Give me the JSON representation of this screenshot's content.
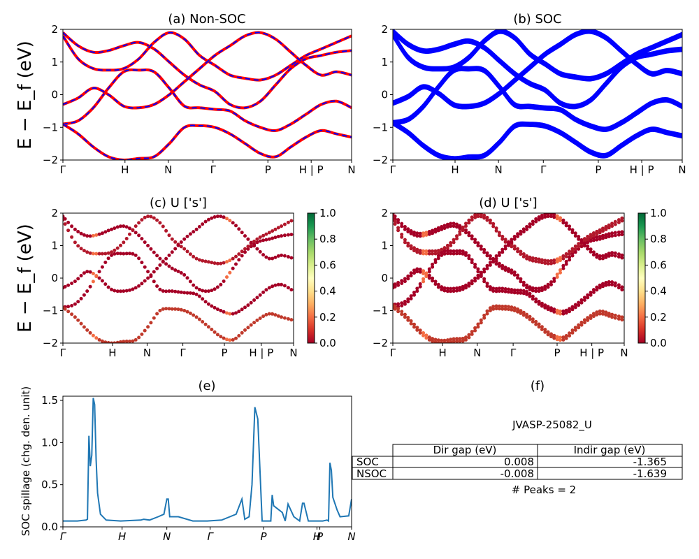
{
  "colors": {
    "nonsoc_red": "#ff0000",
    "nonsoc_blue": "#0000ff",
    "soc_blue": "#0000ff",
    "spillage_line": "#1f77b4",
    "colormap": "RdYlGn"
  },
  "shared": {
    "ylabel": "E − E_f (eV)",
    "ylim": [
      -2,
      2
    ],
    "yticks": [
      "2",
      "1",
      "0",
      "−1",
      "−2"
    ]
  },
  "chart_data": [
    {
      "id": "a",
      "type": "line",
      "title": "(a) Non-SOC",
      "ylim": [
        -2,
        2
      ],
      "kpath": [
        "Γ",
        "H",
        "N",
        "Γ",
        "P",
        "H | P",
        "N"
      ],
      "series": [
        {
          "y": [
            1.9,
            1.5,
            1.3,
            1.35,
            1.5,
            1.6,
            1.4,
            1.0,
            0.6,
            0.3,
            0.1,
            -0.3,
            -0.4,
            -0.2,
            0.3,
            0.8,
            1.1,
            1.2,
            1.3,
            1.35
          ]
        },
        {
          "y": [
            1.8,
            1.1,
            0.8,
            0.75,
            0.8,
            1.1,
            1.6,
            1.9,
            1.7,
            1.2,
            0.9,
            0.6,
            0.5,
            0.45,
            0.6,
            0.9,
            1.2,
            1.4,
            1.6,
            1.8
          ]
        },
        {
          "y": [
            -0.9,
            -0.8,
            -0.4,
            0.2,
            0.7,
            0.75,
            0.7,
            0.2,
            -0.35,
            -0.4,
            -0.45,
            -0.5,
            -0.8,
            -1.0,
            -1.1,
            -0.9,
            -0.6,
            -0.3,
            -0.2,
            -0.4
          ]
        },
        {
          "y": [
            -0.9,
            -1.2,
            -1.6,
            -1.9,
            -2.0,
            -1.95,
            -1.9,
            -1.5,
            -1.0,
            -0.95,
            -1.0,
            -1.2,
            -1.5,
            -1.8,
            -1.9,
            -1.6,
            -1.3,
            -1.1,
            -1.2,
            -1.3
          ]
        },
        {
          "y": [
            -0.3,
            -0.1,
            0.2,
            0.0,
            -0.35,
            -0.4,
            -0.3,
            0.0,
            0.4,
            0.8,
            1.2,
            1.5,
            1.8,
            1.9,
            1.7,
            1.3,
            0.9,
            0.6,
            0.7,
            0.6
          ]
        }
      ]
    },
    {
      "id": "b",
      "type": "line",
      "title": "(b) SOC",
      "ylim": [
        -2,
        2
      ],
      "kpath": [
        "Γ",
        "H",
        "N",
        "Γ",
        "P",
        "H | P",
        "N"
      ],
      "series": [
        {
          "y": [
            1.9,
            1.5,
            1.3,
            1.35,
            1.5,
            1.6,
            1.4,
            1.0,
            0.6,
            0.3,
            0.1,
            -0.3,
            -0.4,
            -0.2,
            0.3,
            0.8,
            1.1,
            1.2,
            1.3,
            1.35
          ]
        },
        {
          "y": [
            1.8,
            1.1,
            0.8,
            0.75,
            0.8,
            1.1,
            1.6,
            1.9,
            1.7,
            1.2,
            0.9,
            0.6,
            0.5,
            0.45,
            0.6,
            0.9,
            1.2,
            1.4,
            1.6,
            1.8
          ]
        },
        {
          "y": [
            -0.9,
            -0.8,
            -0.4,
            0.2,
            0.7,
            0.75,
            0.7,
            0.2,
            -0.35,
            -0.4,
            -0.45,
            -0.5,
            -0.8,
            -1.0,
            -1.1,
            -0.9,
            -0.6,
            -0.3,
            -0.2,
            -0.4
          ]
        },
        {
          "y": [
            -0.9,
            -1.2,
            -1.6,
            -1.9,
            -2.0,
            -1.95,
            -1.9,
            -1.5,
            -1.0,
            -0.95,
            -1.0,
            -1.2,
            -1.5,
            -1.8,
            -1.9,
            -1.6,
            -1.3,
            -1.1,
            -1.2,
            -1.3
          ]
        },
        {
          "y": [
            -0.3,
            -0.1,
            0.2,
            0.0,
            -0.35,
            -0.4,
            -0.3,
            0.0,
            0.4,
            0.8,
            1.2,
            1.5,
            1.8,
            1.9,
            1.7,
            1.3,
            0.9,
            0.6,
            0.7,
            0.6
          ]
        }
      ]
    },
    {
      "id": "c",
      "type": "scatter",
      "title": "(c)  U ['s']",
      "ylim": [
        -2,
        2
      ],
      "kpath": [
        "Γ",
        "H",
        "N",
        "Γ",
        "P",
        "H | P",
        "N"
      ],
      "colorbar": {
        "min": 0.0,
        "max": 1.0,
        "ticks": [
          "1.0",
          "0.8",
          "0.6",
          "0.4",
          "0.2",
          "0.0"
        ]
      },
      "series": [
        {
          "y": [
            1.9,
            1.5,
            1.3,
            1.35,
            1.5,
            1.6,
            1.4,
            1.0,
            0.6,
            0.3,
            0.1,
            -0.3,
            -0.4,
            -0.2,
            0.3,
            0.8,
            1.1,
            1.2,
            1.3,
            1.35
          ]
        },
        {
          "y": [
            1.8,
            1.1,
            0.8,
            0.75,
            0.8,
            1.1,
            1.6,
            1.9,
            1.7,
            1.2,
            0.9,
            0.6,
            0.5,
            0.45,
            0.6,
            0.9,
            1.2,
            1.4,
            1.6,
            1.8
          ]
        },
        {
          "y": [
            -0.9,
            -0.8,
            -0.4,
            0.2,
            0.7,
            0.75,
            0.7,
            0.2,
            -0.35,
            -0.4,
            -0.45,
            -0.5,
            -0.8,
            -1.0,
            -1.1,
            -0.9,
            -0.6,
            -0.3,
            -0.2,
            -0.4
          ]
        },
        {
          "y": [
            -0.9,
            -1.2,
            -1.6,
            -1.9,
            -2.0,
            -1.95,
            -1.9,
            -1.5,
            -1.0,
            -0.95,
            -1.0,
            -1.2,
            -1.5,
            -1.8,
            -1.9,
            -1.6,
            -1.3,
            -1.1,
            -1.2,
            -1.3
          ]
        },
        {
          "y": [
            -0.3,
            -0.1,
            0.2,
            0.0,
            -0.35,
            -0.4,
            -0.3,
            0.0,
            0.4,
            0.8,
            1.2,
            1.5,
            1.8,
            1.9,
            1.7,
            1.3,
            0.9,
            0.6,
            0.7,
            0.6
          ]
        }
      ]
    },
    {
      "id": "d",
      "type": "scatter",
      "title": "(d) U ['s']",
      "ylim": [
        -2,
        2
      ],
      "kpath": [
        "Γ",
        "H",
        "N",
        "Γ",
        "P",
        "H | P",
        "N"
      ],
      "colorbar": {
        "min": 0.0,
        "max": 1.0,
        "ticks": [
          "1.0",
          "0.8",
          "0.6",
          "0.4",
          "0.2",
          "0.0"
        ]
      },
      "series": [
        {
          "y": [
            1.9,
            1.5,
            1.3,
            1.35,
            1.5,
            1.6,
            1.4,
            1.0,
            0.6,
            0.3,
            0.1,
            -0.3,
            -0.4,
            -0.2,
            0.3,
            0.8,
            1.1,
            1.2,
            1.3,
            1.35
          ]
        },
        {
          "y": [
            1.8,
            1.1,
            0.8,
            0.75,
            0.8,
            1.1,
            1.6,
            1.9,
            1.7,
            1.2,
            0.9,
            0.6,
            0.5,
            0.45,
            0.6,
            0.9,
            1.2,
            1.4,
            1.6,
            1.8
          ]
        },
        {
          "y": [
            -0.9,
            -0.8,
            -0.4,
            0.2,
            0.7,
            0.75,
            0.7,
            0.2,
            -0.35,
            -0.4,
            -0.45,
            -0.5,
            -0.8,
            -1.0,
            -1.1,
            -0.9,
            -0.6,
            -0.3,
            -0.2,
            -0.4
          ]
        },
        {
          "y": [
            -0.9,
            -1.2,
            -1.6,
            -1.9,
            -2.0,
            -1.95,
            -1.9,
            -1.5,
            -1.0,
            -0.95,
            -1.0,
            -1.2,
            -1.5,
            -1.8,
            -1.9,
            -1.6,
            -1.3,
            -1.1,
            -1.2,
            -1.3
          ]
        },
        {
          "y": [
            -0.3,
            -0.1,
            0.2,
            0.0,
            -0.35,
            -0.4,
            -0.3,
            0.0,
            0.4,
            0.8,
            1.2,
            1.5,
            1.8,
            1.9,
            1.7,
            1.3,
            0.9,
            0.6,
            0.7,
            0.6
          ]
        }
      ]
    },
    {
      "id": "e",
      "type": "line",
      "title": "(e)",
      "ylabel": "SOC spillage (chg. den. unit)",
      "ylim": [
        0.0,
        1.55
      ],
      "yticks": [
        "1.5",
        "1.0",
        "0.5",
        "0.0"
      ],
      "kpath": [
        "Γ",
        "H",
        "N",
        "Γ",
        "P",
        "H",
        "P",
        "N"
      ],
      "x": [
        0,
        0.05,
        0.08,
        0.085,
        0.09,
        0.095,
        0.1,
        0.105,
        0.11,
        0.115,
        0.12,
        0.13,
        0.15,
        0.2,
        0.27,
        0.28,
        0.3,
        0.33,
        0.35,
        0.36,
        0.365,
        0.37,
        0.4,
        0.45,
        0.5,
        0.55,
        0.6,
        0.62,
        0.63,
        0.645,
        0.655,
        0.665,
        0.675,
        0.69,
        0.72,
        0.725,
        0.73,
        0.76,
        0.77,
        0.78,
        0.8,
        0.82,
        0.83,
        0.835,
        0.85,
        0.88,
        0.9,
        0.915,
        0.92,
        0.925,
        0.93,
        0.935,
        0.95,
        0.96,
        0.99,
        1.0
      ],
      "y": [
        0.07,
        0.07,
        0.08,
        0.09,
        1.08,
        0.72,
        0.85,
        1.53,
        1.45,
        0.8,
        0.4,
        0.15,
        0.08,
        0.07,
        0.08,
        0.09,
        0.08,
        0.12,
        0.15,
        0.33,
        0.33,
        0.12,
        0.12,
        0.07,
        0.07,
        0.08,
        0.15,
        0.33,
        0.09,
        0.12,
        0.5,
        1.42,
        1.28,
        0.07,
        0.07,
        0.38,
        0.25,
        0.17,
        0.07,
        0.27,
        0.12,
        0.07,
        0.28,
        0.28,
        0.07,
        0.07,
        0.07,
        0.08,
        0.07,
        0.76,
        0.67,
        0.35,
        0.2,
        0.12,
        0.13,
        0.33
      ]
    },
    {
      "id": "f",
      "type": "table",
      "title": "(f)",
      "subtitle": "JVASP-25082_U",
      "columns": [
        "Dir gap (eV)",
        "Indir gap (eV)"
      ],
      "rows": [
        {
          "label": "SOC",
          "values": [
            "0.008",
            "-1.365"
          ]
        },
        {
          "label": "NSOC",
          "values": [
            "-0.008",
            "-1.639"
          ]
        }
      ],
      "footer": "# Peaks = 2"
    }
  ]
}
